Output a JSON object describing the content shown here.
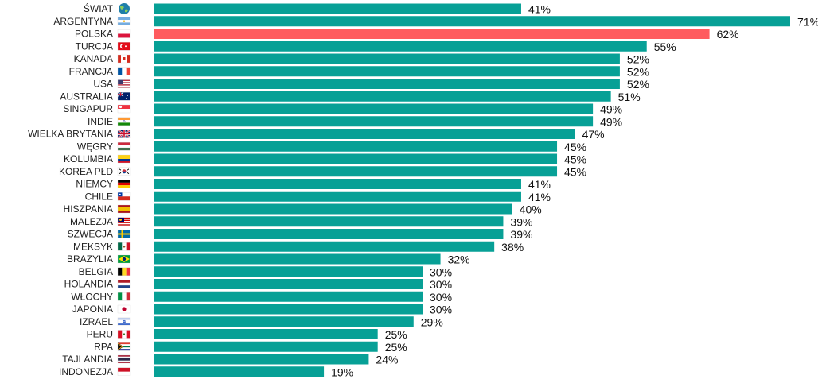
{
  "chart_data": {
    "type": "bar",
    "orientation": "horizontal",
    "title": "",
    "xlabel": "",
    "ylabel": "",
    "xlim": [
      0,
      71
    ],
    "grid": false,
    "legend": "none",
    "value_suffix": "%",
    "colors": {
      "default": "#07A096",
      "highlight": "#FF5B5F"
    },
    "highlight_category": "POLSKA",
    "categories": [
      "ŚWIAT",
      "ARGENTYNA",
      "POLSKA",
      "TURCJA",
      "KANADA",
      "FRANCJA",
      "USA",
      "AUSTRALIA",
      "SINGAPUR",
      "INDIE",
      "WIELKA BRYTANIA",
      "WĘGRY",
      "KOLUMBIA",
      "KOREA PŁD",
      "NIEMCY",
      "CHILE",
      "HISZPANIA",
      "MALEZJA",
      "SZWECJA",
      "MEKSYK",
      "BRAZYLIA",
      "BELGIA",
      "HOLANDIA",
      "WŁOCHY",
      "JAPONIA",
      "IZRAEL",
      "PERU",
      "RPA",
      "TAJLANDIA",
      "INDONEZJA"
    ],
    "values": [
      41,
      71,
      62,
      55,
      52,
      52,
      52,
      51,
      49,
      49,
      47,
      45,
      45,
      45,
      41,
      41,
      40,
      39,
      39,
      38,
      32,
      30,
      30,
      30,
      30,
      29,
      25,
      25,
      24,
      19
    ],
    "value_labels": [
      "41%",
      "71%",
      "62%",
      "55%",
      "52%",
      "52%",
      "52%",
      "51%",
      "49%",
      "49%",
      "47%",
      "45%",
      "45%",
      "45%",
      "41%",
      "41%",
      "40%",
      "39%",
      "39%",
      "38%",
      "32%",
      "30%",
      "30%",
      "30%",
      "30%",
      "29%",
      "25%",
      "25%",
      "24%",
      "19%"
    ],
    "icons": [
      "globe-icon",
      "flag-argentina-icon",
      "flag-poland-icon",
      "flag-turkey-icon",
      "flag-canada-icon",
      "flag-france-icon",
      "flag-usa-icon",
      "flag-australia-icon",
      "flag-singapore-icon",
      "flag-india-icon",
      "flag-united-kingdom-icon",
      "flag-hungary-icon",
      "flag-colombia-icon",
      "flag-south-korea-icon",
      "flag-germany-icon",
      "flag-chile-icon",
      "flag-spain-icon",
      "flag-malaysia-icon",
      "flag-sweden-icon",
      "flag-mexico-icon",
      "flag-brazil-icon",
      "flag-belgium-icon",
      "flag-netherlands-icon",
      "flag-italy-icon",
      "flag-japan-icon",
      "flag-israel-icon",
      "flag-peru-icon",
      "flag-south-africa-icon",
      "flag-thailand-icon",
      "flag-indonesia-icon"
    ]
  }
}
